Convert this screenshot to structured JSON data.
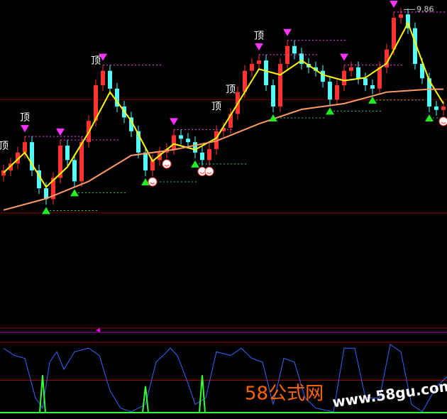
{
  "chart_data": {
    "type": "candlestick",
    "up_color": "#ff3232",
    "down_color": "#54fcfc",
    "ylim": [
      4.3,
      10.0
    ],
    "open": [
      6.95,
      7.04,
      7.16,
      7.35,
      7.53,
      7.04,
      6.73,
      6.54,
      6.91,
      7.47,
      7.22,
      6.85,
      7.53,
      7.9,
      8.52,
      8.77,
      8.46,
      8.15,
      7.96,
      7.72,
      7.35,
      7.04,
      7.22,
      7.35,
      7.41,
      7.65,
      7.59,
      7.53,
      7.35,
      7.22,
      7.41,
      7.72,
      7.78,
      8.02,
      8.4,
      8.77,
      8.89,
      8.95,
      8.52,
      8.15,
      8.89,
      9.2,
      9.07,
      8.89,
      8.83,
      8.77,
      8.58,
      8.27,
      8.52,
      8.77,
      8.83,
      8.64,
      8.52,
      8.46,
      8.83,
      9.14,
      9.69,
      9.75,
      9.51,
      8.89,
      8.64,
      8.15,
      8.09
    ],
    "high": [
      7.14,
      7.26,
      7.45,
      7.63,
      7.63,
      7.14,
      6.83,
      7.01,
      7.57,
      7.57,
      7.32,
      7.63,
      8.0,
      8.62,
      8.87,
      8.87,
      8.56,
      8.25,
      8.06,
      7.82,
      7.45,
      7.32,
      7.45,
      7.51,
      7.75,
      7.75,
      7.69,
      7.63,
      7.45,
      7.51,
      7.82,
      7.88,
      8.12,
      8.5,
      8.87,
      8.99,
      9.05,
      9.05,
      8.62,
      8.99,
      9.3,
      9.3,
      9.17,
      8.99,
      8.93,
      8.87,
      8.68,
      8.62,
      8.87,
      8.93,
      8.93,
      8.74,
      8.62,
      8.93,
      9.24,
      9.79,
      9.86,
      9.85,
      9.61,
      8.99,
      8.74,
      8.25,
      8.25
    ],
    "low": [
      6.85,
      6.94,
      7.06,
      7.25,
      6.94,
      6.63,
      6.44,
      6.44,
      6.81,
      7.12,
      6.75,
      6.75,
      7.43,
      7.8,
      8.42,
      8.36,
      8.05,
      7.86,
      7.62,
      7.25,
      6.94,
      6.94,
      7.12,
      7.25,
      7.31,
      7.49,
      7.43,
      7.25,
      7.12,
      7.12,
      7.31,
      7.62,
      7.68,
      7.92,
      8.3,
      8.67,
      8.79,
      8.42,
      8.05,
      8.05,
      8.79,
      8.97,
      8.79,
      8.73,
      8.67,
      8.48,
      8.17,
      8.17,
      8.42,
      8.67,
      8.54,
      8.42,
      8.36,
      8.36,
      8.73,
      9.04,
      9.59,
      9.41,
      8.79,
      8.54,
      8.05,
      7.99,
      7.99
    ],
    "close": [
      7.04,
      7.16,
      7.35,
      7.53,
      7.04,
      6.73,
      6.54,
      6.91,
      7.47,
      7.22,
      6.85,
      7.53,
      7.9,
      8.52,
      8.77,
      8.46,
      8.15,
      7.96,
      7.72,
      7.35,
      7.04,
      7.22,
      7.35,
      7.41,
      7.65,
      7.59,
      7.53,
      7.35,
      7.22,
      7.41,
      7.72,
      7.78,
      8.02,
      8.4,
      8.77,
      8.89,
      8.95,
      8.52,
      8.15,
      8.89,
      9.2,
      9.07,
      8.89,
      8.83,
      8.77,
      8.58,
      8.27,
      8.52,
      8.77,
      8.83,
      8.64,
      8.52,
      8.46,
      8.83,
      9.14,
      9.69,
      9.75,
      9.51,
      8.89,
      8.64,
      8.15,
      8.09,
      8.15
    ],
    "series": [
      {
        "color": "#ffff00",
        "x": [
          0,
          3,
          6,
          9,
          12,
          15,
          18,
          21,
          24,
          27,
          30,
          33,
          36,
          39,
          42,
          45,
          48,
          51,
          54,
          57,
          60,
          62
        ],
        "values": [
          7.0,
          7.35,
          6.75,
          7.1,
          7.7,
          8.4,
          7.9,
          7.2,
          7.5,
          7.4,
          7.6,
          8.2,
          8.8,
          8.7,
          8.95,
          8.7,
          8.6,
          8.65,
          8.9,
          9.6,
          8.6,
          8.2
        ]
      },
      {
        "color": "#ff9966",
        "x": [
          0,
          6,
          12,
          18,
          24,
          30,
          36,
          42,
          48,
          54,
          60,
          62
        ],
        "values": [
          6.35,
          6.55,
          6.85,
          7.3,
          7.4,
          7.55,
          7.85,
          8.1,
          8.2,
          8.4,
          8.45,
          8.45
        ]
      }
    ],
    "levels": [
      8.27,
      6.3
    ],
    "sell_signals": [
      3,
      8,
      14,
      24,
      36,
      40,
      48,
      55
    ],
    "buy_signals": [
      6,
      10,
      20,
      27,
      38,
      46,
      52,
      60
    ],
    "smile_signals": [
      21,
      23,
      28,
      29,
      62
    ],
    "annotations": [
      {
        "text": "顶",
        "x": 0
      },
      {
        "text": "顶",
        "x": 3
      },
      {
        "text": "顶",
        "x": 13
      },
      {
        "text": "顶",
        "x": 30
      },
      {
        "text": "顶",
        "x": 32
      },
      {
        "text": "顶",
        "x": 36
      }
    ],
    "max_marker": 56,
    "indicator": {
      "ylim": [
        0,
        100
      ],
      "levels": [
        100,
        48
      ],
      "line": {
        "color": "#3366ff",
        "x": [
          0,
          1.5,
          3,
          4.5,
          5.5,
          6.5,
          7.5,
          8.5,
          10,
          12,
          13.5,
          15,
          16.5,
          18,
          20,
          21.5,
          22.5,
          23.5,
          24.5,
          26,
          27,
          28.5,
          30,
          32,
          33.5,
          35,
          36.5,
          38,
          39.5,
          41,
          42.5,
          44,
          46.5,
          48,
          49.5,
          51,
          53,
          54.5,
          56,
          57.5,
          59,
          61,
          62.5
        ],
        "values": [
          92,
          82,
          78,
          24,
          10,
          73,
          87,
          63,
          87,
          92,
          82,
          34,
          10,
          5,
          15,
          73,
          82,
          92,
          82,
          44,
          15,
          24,
          87,
          82,
          92,
          78,
          73,
          15,
          78,
          73,
          24,
          10,
          5,
          92,
          92,
          24,
          24,
          97,
          87,
          15,
          5,
          39,
          53
        ]
      },
      "spikes": {
        "color": "#33ff33",
        "x": [
          5.5,
          20,
          28
        ],
        "values": [
          55,
          40,
          55
        ]
      }
    },
    "watermark": {
      "logo": "58公式网",
      "url": "www.58gu.com"
    }
  }
}
